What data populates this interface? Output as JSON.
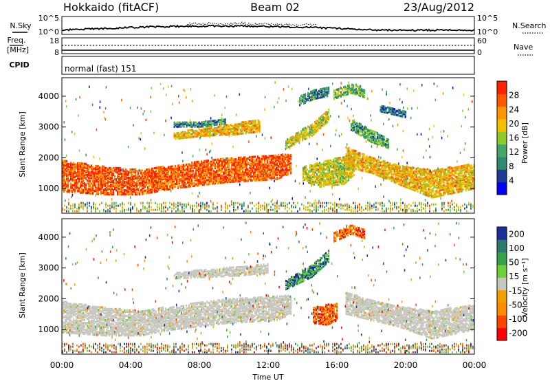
{
  "header": {
    "station": "Hokkaido (fitACF)",
    "beam": "Beam 02",
    "date": "23/Aug/2012"
  },
  "status_panels": {
    "noise": {
      "left_label": "N.Sky",
      "right_label": "N.Search",
      "left_ticks": [
        "10^5",
        "10^0"
      ],
      "right_ticks": [
        "10^5",
        "10^0"
      ]
    },
    "freq_nave": {
      "left_label_1": "Freq.",
      "left_label_2": "[MHz]",
      "right_label": "Nave",
      "left_ticks": [
        "18",
        "8"
      ],
      "right_ticks": [
        "60",
        "0"
      ]
    },
    "cpid": {
      "label": "CPID",
      "value": "normal (fast) 151"
    }
  },
  "colors": {
    "power": [
      "#0000ff",
      "#1e3c96",
      "#2f8a6e",
      "#45a66a",
      "#8fcc2a",
      "#f2c200",
      "#ff9500",
      "#ff5a00",
      "#ff2200"
    ],
    "velocity_positive": [
      "#1a2f9c",
      "#2e7b6e",
      "#39a04a",
      "#6fcf3a"
    ],
    "velocity_ground": "#c8c8c0",
    "velocity_negative": [
      "#f0a000",
      "#ff8a00",
      "#ff4400",
      "#ff0000"
    ]
  },
  "chart_data": [
    {
      "type": "heatmap",
      "panel": "power",
      "ylabel": "Slant Range [km]",
      "yticks": [
        1000,
        2000,
        3000,
        4000
      ],
      "ylim": [
        200,
        4600
      ],
      "xlim": [
        "00:00",
        "24:00"
      ],
      "colorbar": {
        "label": "Power [dB]",
        "ticks": [
          4,
          8,
          12,
          16,
          20,
          24,
          28
        ],
        "range": [
          0,
          32
        ]
      },
      "bands": [
        {
          "t": [
            0,
            2.5,
            4.5,
            6.5,
            9.5,
            12.5,
            13.3
          ],
          "low": [
            900,
            800,
            800,
            1000,
            1200,
            1300,
            1500
          ],
          "high": [
            1900,
            1700,
            1600,
            1750,
            2000,
            2100,
            2100
          ],
          "level": 27
        },
        {
          "t": [
            14.0,
            15.0,
            16.4,
            17.0
          ],
          "low": [
            1250,
            1050,
            1150,
            1450
          ],
          "high": [
            1700,
            1850,
            2050,
            2250
          ],
          "level": 18
        },
        {
          "t": [
            16.5,
            18.0,
            19.5,
            21.5,
            24.0
          ],
          "low": [
            1700,
            1500,
            1150,
            700,
            1000
          ],
          "high": [
            2350,
            2000,
            1750,
            1600,
            1800
          ],
          "level": 21
        },
        {
          "t": [
            6.5,
            8.0,
            10.0,
            11.5
          ],
          "low": [
            2600,
            2700,
            2750,
            2850
          ],
          "high": [
            2800,
            2950,
            3100,
            3250
          ],
          "level": 21
        },
        {
          "t": [
            6.5,
            8.0,
            9.5
          ],
          "low": [
            3000,
            3000,
            3100
          ],
          "high": [
            3150,
            3150,
            3250
          ],
          "level": 9
        },
        {
          "t": [
            13.0,
            14.5,
            15.5
          ],
          "low": [
            2300,
            2700,
            3200
          ],
          "high": [
            2600,
            3100,
            3600
          ],
          "level": 18
        },
        {
          "t": [
            13.8,
            14.6,
            15.5
          ],
          "low": [
            3700,
            3900,
            4000
          ],
          "high": [
            4000,
            4200,
            4300
          ],
          "level": 10
        },
        {
          "t": [
            15.8,
            16.8,
            17.6
          ],
          "low": [
            3900,
            4100,
            3950
          ],
          "high": [
            4200,
            4400,
            4300
          ],
          "level": 14
        },
        {
          "t": [
            16.8,
            18.0,
            19.0
          ],
          "low": [
            2900,
            2500,
            2300
          ],
          "high": [
            3300,
            2900,
            2600
          ],
          "level": 12
        },
        {
          "t": [
            18.5,
            20.0
          ],
          "low": [
            3500,
            3300
          ],
          "high": [
            3700,
            3500
          ],
          "level": 8
        }
      ]
    },
    {
      "type": "heatmap",
      "panel": "velocity",
      "ylabel": "Slant Range [km]",
      "yticks": [
        1000,
        2000,
        3000,
        4000
      ],
      "ylim": [
        200,
        4600
      ],
      "xlabel": "Time UT",
      "xticks": [
        "00:00",
        "04:00",
        "08:00",
        "12:00",
        "16:00",
        "20:00",
        "00:00"
      ],
      "xlim": [
        "00:00",
        "24:00"
      ],
      "colorbar": {
        "label": "Velocity [m s⁻¹]",
        "ticks": [
          "200",
          "100",
          "50",
          "15",
          "-15",
          "-50",
          "-100",
          "-200"
        ]
      },
      "bands": [
        {
          "t": [
            0,
            2.5,
            4.5,
            6.5,
            9.5,
            12.5,
            13.3
          ],
          "low": [
            900,
            800,
            800,
            1000,
            1200,
            1300,
            1500
          ],
          "high": [
            1900,
            1700,
            1600,
            1750,
            2000,
            2100,
            2100
          ],
          "cat": "ground"
        },
        {
          "t": [
            16.5,
            18.0,
            19.5,
            21.5,
            24.0
          ],
          "low": [
            1500,
            1300,
            1100,
            700,
            1000
          ],
          "high": [
            2200,
            1950,
            1750,
            1600,
            1800
          ],
          "cat": "ground"
        },
        {
          "t": [
            6.5,
            8.5,
            10.5,
            12.0
          ],
          "low": [
            2650,
            2700,
            2750,
            2850
          ],
          "high": [
            2850,
            2950,
            3050,
            3150
          ],
          "cat": "ground"
        },
        {
          "t": [
            14.6,
            15.4,
            16.0
          ],
          "low": [
            1200,
            1150,
            1300
          ],
          "high": [
            1700,
            1800,
            1850
          ],
          "cat": "neg"
        },
        {
          "t": [
            13.0,
            14.5,
            15.5
          ],
          "low": [
            2300,
            2700,
            3200
          ],
          "high": [
            2600,
            3100,
            3600
          ],
          "cat": "pos"
        },
        {
          "t": [
            15.8,
            16.8,
            17.6
          ],
          "low": [
            3850,
            4100,
            3950
          ],
          "high": [
            4150,
            4400,
            4250
          ],
          "cat": "neg"
        }
      ]
    }
  ]
}
